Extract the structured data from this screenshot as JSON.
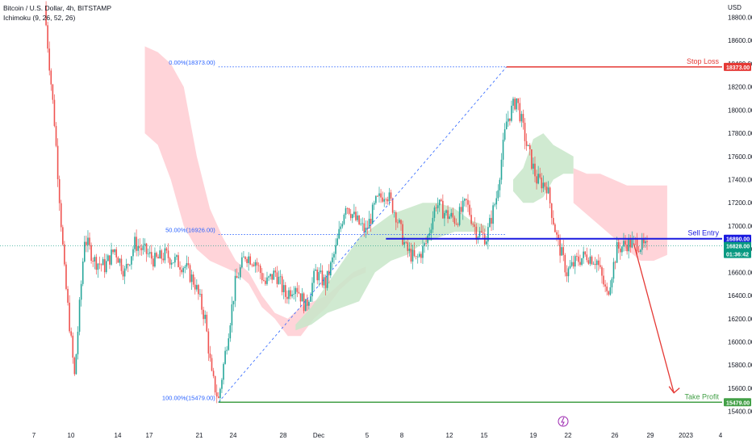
{
  "header": {
    "symbol_line": "Bitcoin / U.S. Dollar, 4h, BITSTAMP",
    "indicator_line": "Ichimoku (9, 26, 52, 26)"
  },
  "colors": {
    "up": "#26a69a",
    "down": "#ef5350",
    "stop": "#e53935",
    "take": "#43a047",
    "entry": "#1a1adf",
    "fib": "#2962ff",
    "cloud_bear": "#ffcdd2",
    "cloud_bull": "#c8e6c9",
    "last_price": "#089981"
  },
  "chart_data": {
    "type": "candlestick",
    "currency_label": "USD",
    "y_range": [
      15300,
      18950
    ],
    "y_ticks": [
      "18800.00",
      "18600.00",
      "18400.00",
      "18200.00",
      "18000.00",
      "17800.00",
      "17600.00",
      "17400.00",
      "17200.00",
      "17000.00",
      "16800.00",
      "16600.00",
      "16400.00",
      "16200.00",
      "16000.00",
      "15800.00",
      "15600.00",
      "15400.00"
    ],
    "x_ticks": [
      "7",
      "10",
      "14",
      "17",
      "21",
      "24",
      "28",
      "Dec",
      "5",
      "8",
      "12",
      "15",
      "19",
      "22",
      "26",
      "29",
      "2023",
      "4"
    ],
    "price_path": [
      [
        0,
        18900
      ],
      [
        3,
        17900
      ],
      [
        6,
        16600
      ],
      [
        9,
        15700
      ],
      [
        12,
        16900
      ],
      [
        15,
        16700
      ],
      [
        18,
        16650
      ],
      [
        21,
        16800
      ],
      [
        24,
        16600
      ],
      [
        27,
        16850
      ],
      [
        30,
        16780
      ],
      [
        33,
        16700
      ],
      [
        36,
        16750
      ],
      [
        39,
        16700
      ],
      [
        42,
        16650
      ],
      [
        45,
        16500
      ],
      [
        48,
        16200
      ],
      [
        50,
        15700
      ],
      [
        52,
        15500
      ],
      [
        55,
        16100
      ],
      [
        57,
        16500
      ],
      [
        60,
        16750
      ],
      [
        63,
        16700
      ],
      [
        66,
        16500
      ],
      [
        69,
        16600
      ],
      [
        72,
        16400
      ],
      [
        75,
        16500
      ],
      [
        78,
        16300
      ],
      [
        81,
        16600
      ],
      [
        84,
        16500
      ],
      [
        87,
        16800
      ],
      [
        90,
        17200
      ],
      [
        93,
        17050
      ],
      [
        96,
        16950
      ],
      [
        99,
        17200
      ],
      [
        102,
        17300
      ],
      [
        105,
        17100
      ],
      [
        108,
        16800
      ],
      [
        111,
        16700
      ],
      [
        114,
        16850
      ],
      [
        117,
        17200
      ],
      [
        120,
        17100
      ],
      [
        123,
        17050
      ],
      [
        126,
        17200
      ],
      [
        129,
        16950
      ],
      [
        132,
        16900
      ],
      [
        135,
        17250
      ],
      [
        138,
        17900
      ],
      [
        141,
        18100
      ],
      [
        144,
        17700
      ],
      [
        147,
        17400
      ],
      [
        150,
        17350
      ],
      [
        153,
        16900
      ],
      [
        156,
        16600
      ],
      [
        159,
        16700
      ],
      [
        162,
        16750
      ],
      [
        165,
        16700
      ],
      [
        168,
        16400
      ],
      [
        171,
        16800
      ],
      [
        174,
        16850
      ],
      [
        177,
        16850
      ],
      [
        180,
        16800
      ]
    ],
    "ichimoku": {
      "bear_cloud_1": {
        "x_range": [
          30,
          96
        ],
        "top": [
          18550,
          18500,
          18400,
          18200,
          17600,
          17150,
          16900,
          16700,
          16600,
          16400,
          16250,
          16200,
          16300,
          16350,
          16400,
          16500,
          16600,
          16650
        ],
        "bottom": [
          17800,
          17700,
          17400,
          17000,
          16800,
          16700,
          16650,
          16600,
          16500,
          16300,
          16200,
          16050,
          16050,
          16200,
          16300,
          16450,
          16550,
          16600
        ]
      },
      "bull_cloud_1": {
        "x_range": [
          75,
          132
        ],
        "top": [
          16150,
          16300,
          16500,
          16700,
          16900,
          17000,
          17100,
          17150,
          17200,
          17200,
          17150,
          17050,
          17000
        ],
        "bottom": [
          16100,
          16150,
          16250,
          16300,
          16350,
          16600,
          16700,
          16750,
          16850,
          16900,
          16950,
          16950,
          16950
        ]
      },
      "bull_cloud_2": {
        "x_range": [
          140,
          158
        ],
        "top": [
          17400,
          17500,
          17750,
          17800,
          17700,
          17650,
          17600
        ],
        "bottom": [
          17300,
          17200,
          17200,
          17250,
          17400,
          17450,
          17450
        ]
      },
      "bear_cloud_2": {
        "x_range": [
          158,
          186
        ],
        "top": [
          17500,
          17450,
          17450,
          17400,
          17350,
          17350,
          17350,
          17350
        ],
        "bottom": [
          17200,
          17100,
          17000,
          16900,
          16800,
          16700,
          16700,
          16750
        ]
      }
    },
    "fibonacci": {
      "levels": [
        {
          "label": "0.00%(18373.00)",
          "price": 18373
        },
        {
          "label": "50.00%(16926.00)",
          "price": 16926
        },
        {
          "label": "100.00%(15479.00)",
          "price": 15479
        }
      ]
    },
    "trade_levels": [
      {
        "name": "Stop Loss",
        "price": 18373,
        "label": "18373.00",
        "color": "#e53935"
      },
      {
        "name": "Sell Entry",
        "price": 16890,
        "label": "16890.00",
        "color": "#1a1adf"
      },
      {
        "name": "Take Profit",
        "price": 15479,
        "label": "15479.00",
        "color": "#43a047"
      }
    ],
    "last_price": {
      "label": "16828.00",
      "countdown": "01:36:42",
      "price": 16828
    },
    "projection": {
      "from": [
        176,
        16850
      ],
      "to": [
        188,
        15560
      ]
    }
  }
}
